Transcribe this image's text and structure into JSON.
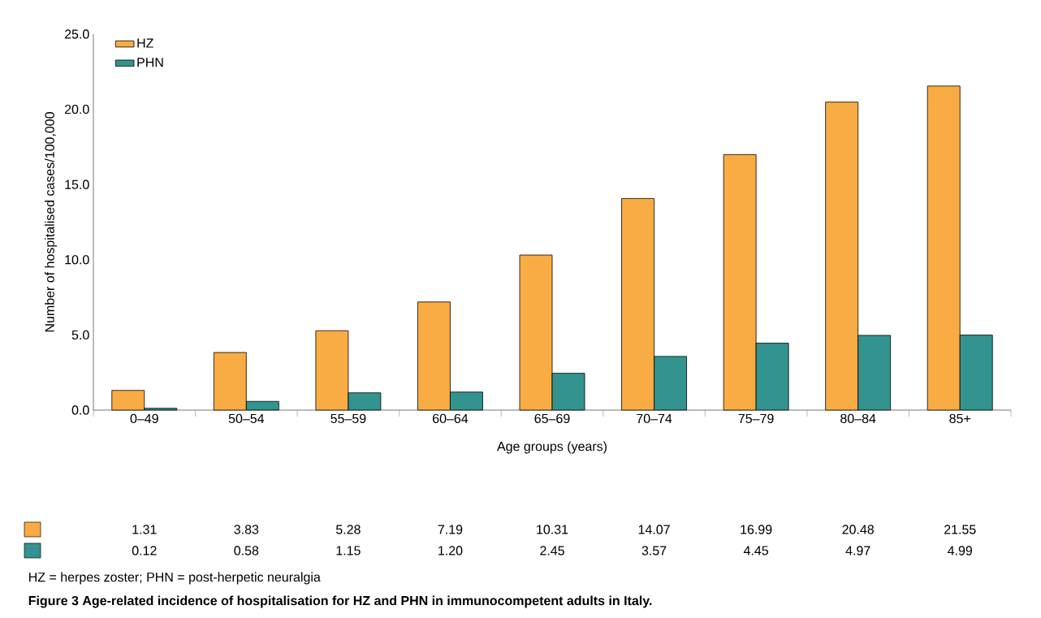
{
  "chart_data": {
    "type": "bar",
    "title": "Figure 3 Age-related incidence of hospitalisation for HZ and PHN in immunocompetent adults in Italy.",
    "xlabel": "Age groups (years)",
    "ylabel": "Number of hospitalised cases/100,000",
    "categories": [
      "0–49",
      "50–54",
      "55–59",
      "60–64",
      "65–69",
      "70–74",
      "75–79",
      "80–84",
      "85+"
    ],
    "series": [
      {
        "name": "HZ",
        "color": "#f9ac43",
        "values": [
          1.31,
          3.83,
          5.28,
          7.19,
          10.31,
          14.07,
          16.99,
          20.48,
          21.55
        ],
        "value_labels": [
          "1.31",
          "3.83",
          "5.28",
          "7.19",
          "10.31",
          "14.07",
          "16.99",
          "20.48",
          "21.55"
        ]
      },
      {
        "name": "PHN",
        "color": "#33938f",
        "values": [
          0.12,
          0.58,
          1.15,
          1.2,
          2.45,
          3.57,
          4.45,
          4.97,
          4.99
        ],
        "value_labels": [
          "0.12",
          "0.58",
          "1.15",
          "1.20",
          "2.45",
          "3.57",
          "4.45",
          "4.97",
          "4.99"
        ]
      }
    ],
    "ylim": [
      0,
      25
    ],
    "yticks": [
      {
        "value": 0,
        "label": "0.0"
      },
      {
        "value": 5,
        "label": "5.0"
      },
      {
        "value": 10,
        "label": "10.0"
      },
      {
        "value": 15,
        "label": "15.0"
      },
      {
        "value": 20,
        "label": "20.0"
      },
      {
        "value": 25,
        "label": "25.0"
      }
    ],
    "legend": "top left",
    "annotations": [
      "HZ = herpes zoster; PHN = post-herpetic neuralgia"
    ]
  }
}
